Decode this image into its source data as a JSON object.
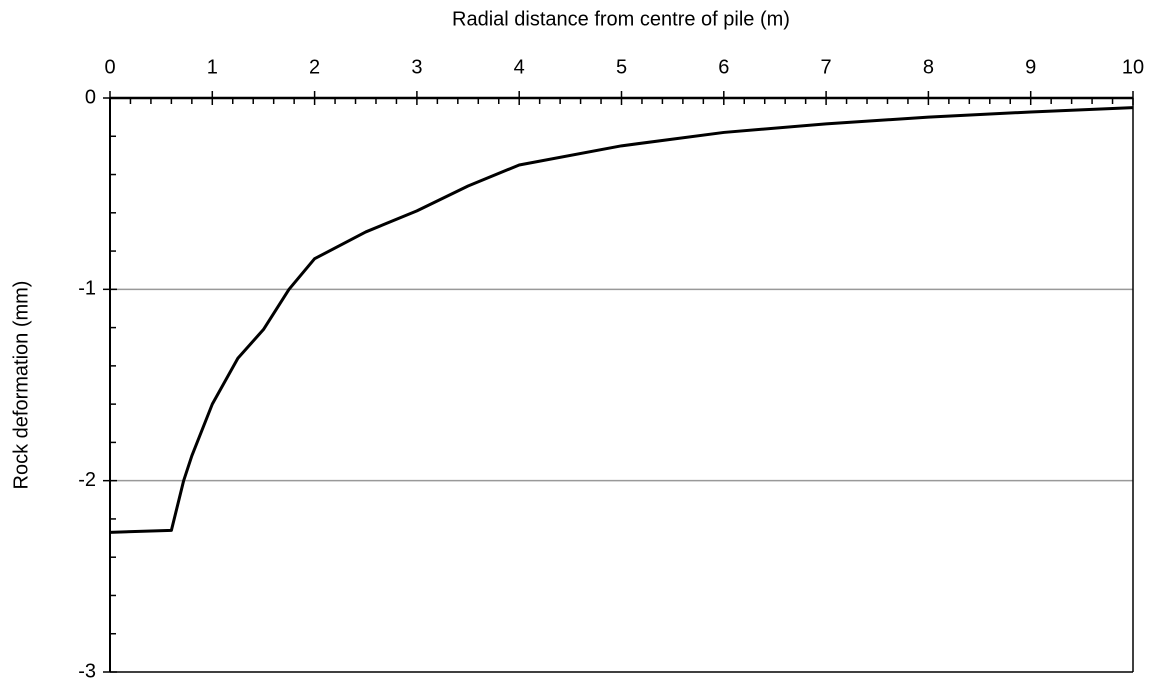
{
  "chart_data": {
    "type": "line",
    "xlabel": "Radial distance from centre of pile (m)",
    "ylabel": "Rock deformation  (mm)",
    "x": [
      0,
      0.6,
      0.72,
      0.8,
      1,
      1.25,
      1.5,
      1.75,
      2,
      2.5,
      3,
      3.5,
      4,
      5,
      6,
      7,
      8,
      9,
      10
    ],
    "series": [
      {
        "color": "#000000",
        "values": [
          -2.27,
          -2.26,
          -2.0,
          -1.87,
          -1.6,
          -1.36,
          -1.21,
          -1.0,
          -0.84,
          -0.7,
          -0.59,
          -0.46,
          -0.35,
          -0.25,
          -0.18,
          -0.135,
          -0.1,
          -0.073,
          -0.05
        ]
      }
    ],
    "xlim": [
      0,
      10
    ],
    "xticks": [
      0,
      1,
      2,
      3,
      4,
      5,
      6,
      7,
      8,
      9,
      10
    ],
    "ylim": [
      -3,
      0
    ],
    "yticks": [
      -3,
      -2,
      -1,
      0
    ],
    "grid": true,
    "xaxis_position": "top"
  }
}
